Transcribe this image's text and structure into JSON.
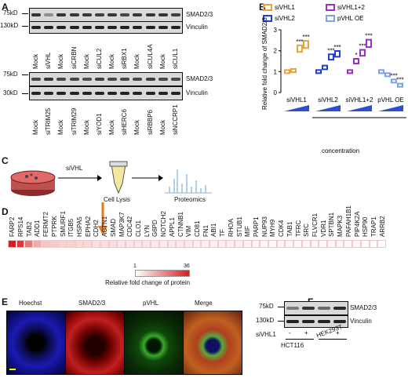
{
  "panels": {
    "a": "A",
    "b": "B",
    "c": "C",
    "d": "D",
    "e": "E",
    "f": "F"
  },
  "panelA": {
    "top": {
      "mw_top": "75kD",
      "mw_bottom": "130kD",
      "band_top": "SMAD2/3",
      "band_bottom": "Vinculin",
      "lanes": [
        "Mock",
        "siVHL",
        "Mock",
        "siCRBN",
        "Mock",
        "siCUL2",
        "Mock",
        "siRBX1",
        "Mock",
        "siCUL4A",
        "Mock",
        "siCUL1"
      ]
    },
    "bottom": {
      "mw_top": "75kD",
      "mw_bottom": "30kD",
      "band_top": "SMAD2/3",
      "band_bottom": "Vinculin",
      "lanes": [
        "Mock",
        "siTRIM25",
        "Mock",
        "siTRIM29",
        "Mock",
        "siYOD1",
        "Mock",
        "siHERC6",
        "Mock",
        "siRBBP6",
        "Mock",
        "siNCCRP1"
      ]
    }
  },
  "panelB_legend": [
    "siVHL1",
    "siVHL2",
    "siVHL1+2",
    "pVHL OE"
  ],
  "panelB_bottom_labels": [
    "siVHL1",
    "siVHL2",
    "siVHL1+2",
    "pVHL OE"
  ],
  "panelB_concentration": "concentration",
  "chart_data": {
    "type": "box",
    "ylabel": "Relative fold change of SMAD2/3",
    "ylim": [
      0,
      3
    ],
    "yticks": [
      0,
      1,
      2,
      3
    ],
    "groups": [
      {
        "name": "siVHL1",
        "color": "#e8a33d",
        "values": [
          1.0,
          1.05,
          2.1,
          2.3
        ],
        "stars": [
          "",
          "",
          "***",
          "***"
        ]
      },
      {
        "name": "siVHL2",
        "color": "#1f3fd1",
        "values": [
          1.0,
          1.2,
          1.7,
          1.85
        ],
        "stars": [
          "",
          "",
          "***",
          "***"
        ]
      },
      {
        "name": "siVHL1+2",
        "color": "#9a2fc4",
        "values": [
          1.0,
          1.5,
          1.9,
          2.35
        ],
        "stars": [
          "",
          "*",
          "***",
          "***"
        ]
      },
      {
        "name": "pVHL OE",
        "color": "#7aa3e0",
        "values": [
          1.0,
          0.85,
          0.55,
          0.35
        ],
        "stars": [
          "",
          "",
          "***",
          "***"
        ]
      }
    ]
  },
  "panelC": {
    "step1": "siVHL",
    "step2": "Cell Lysis",
    "step3": "Proteomics"
  },
  "panelD": {
    "proteins": [
      "FARP2",
      "RPS14",
      "TAB2",
      "ADD1",
      "FERMT2",
      "PTPRK",
      "SMURF1",
      "ITGB5",
      "HSPA5",
      "EPHA2",
      "CDH2",
      "ACTN1",
      "SMAD",
      "MAP3K7",
      "CDC42",
      "CLO1",
      "LYN",
      "G6PD",
      "NOTCH2",
      "APPL1",
      "CTNNB1",
      "VIM",
      "CD81",
      "FN1",
      "ABI1",
      "TF",
      "RHOA",
      "STUB1",
      "MIF",
      "PARP1",
      "NUP93",
      "MYH9",
      "CDK4",
      "TAB1",
      "TFRC",
      "SRC",
      "FLVCR1",
      "VDR1",
      "SPTBN1",
      "MAPK3",
      "PAFAH1B1",
      "PIP4K2A",
      "HSP90",
      "TRAP1",
      "ARRB2"
    ],
    "values": [
      36,
      32,
      22,
      14,
      10,
      9,
      8,
      8,
      7,
      7,
      6,
      6,
      6,
      5,
      5,
      5,
      5,
      4,
      4,
      4,
      4,
      4,
      3,
      3,
      3,
      3,
      3,
      3,
      3,
      2,
      2,
      2,
      2,
      2,
      2,
      2,
      2,
      2,
      2,
      2,
      2,
      2,
      1,
      1,
      1
    ],
    "scale_min": "1",
    "scale_max": "36",
    "scale_label": "Relative fold change of protein"
  },
  "panelE": {
    "labels": [
      "Hoechst",
      "SMAD2/3",
      "pVHL",
      "Merge"
    ]
  },
  "panelF": {
    "mw_top": "75kD",
    "mw_bottom": "130kD",
    "band_top": "SMAD2/3",
    "band_bottom": "Vinculin",
    "row_label": "siVHL1",
    "signs": [
      "-",
      "+",
      "-",
      "+"
    ],
    "cells": [
      "HCT116",
      "HEK293T"
    ]
  }
}
